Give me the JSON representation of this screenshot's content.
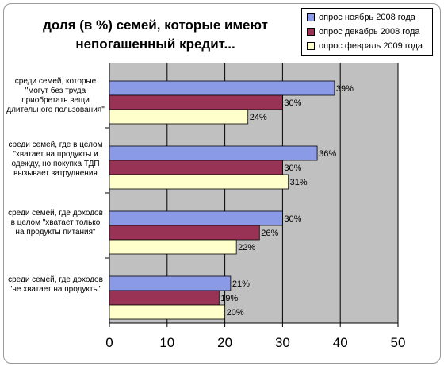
{
  "chart_data": {
    "type": "bar",
    "orientation": "horizontal",
    "title": "доля (в %) семей, которые имеют непогашенный кредит...",
    "categories": [
      "среди семей, которые \"могут без труда приобретать вещи длительного пользования\"",
      "среди семей, где в целом \"хватает на продукты и одежду, но покупка ТДП вызывает затруднения",
      "среди семей, где доходов в целом \"хватает только на продукты питания\"",
      "среди семей, где доходов \"не хватает на продукты\""
    ],
    "series": [
      {
        "name": "опрос ноябрь 2008 года",
        "color": "#8a9ae6",
        "values": [
          39,
          36,
          30,
          21
        ],
        "labels": [
          "39%",
          "36%",
          "30%",
          "21%"
        ]
      },
      {
        "name": "опрос декабрь 2008 года",
        "color": "#993355",
        "values": [
          30,
          30,
          26,
          19
        ],
        "labels": [
          "30%",
          "30%",
          "26%",
          "19%"
        ]
      },
      {
        "name": "опрос февраль 2009 года",
        "color": "#ffffcc",
        "values": [
          24,
          31,
          22,
          20
        ],
        "labels": [
          "24%",
          "31%",
          "22%",
          "20%"
        ]
      }
    ],
    "xlim": [
      0,
      50
    ],
    "xticks": [
      0,
      10,
      20,
      30,
      40,
      50
    ],
    "grid": true,
    "plot_background": "#c0c0c0",
    "legend": "top-right"
  }
}
